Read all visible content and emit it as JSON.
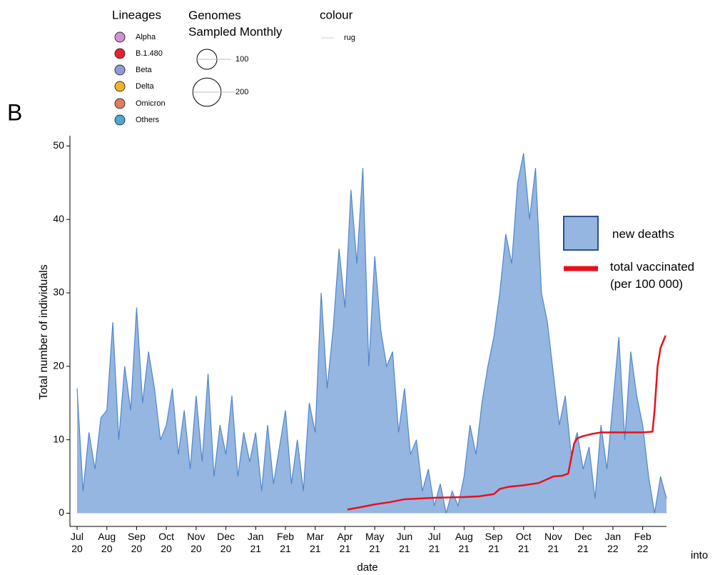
{
  "chart_data": {
    "type": "area",
    "panel": "B",
    "xlabel": "date",
    "ylabel": "Total number of individuals",
    "annotation": "into",
    "xlim": [
      -0.24,
      19.8
    ],
    "ylim": [
      -1.8,
      51.4
    ],
    "yticks": [
      0,
      10,
      20,
      30,
      40,
      50
    ],
    "xticks": [
      {
        "value": 0,
        "label": "Jul\n20"
      },
      {
        "value": 1,
        "label": "Aug\n20"
      },
      {
        "value": 2,
        "label": "Sep\n20"
      },
      {
        "value": 3,
        "label": "Oct\n20"
      },
      {
        "value": 4,
        "label": "Nov\n20"
      },
      {
        "value": 5,
        "label": "Dec\n20"
      },
      {
        "value": 6,
        "label": "Jan\n21"
      },
      {
        "value": 7,
        "label": "Feb\n21"
      },
      {
        "value": 8,
        "label": "Mar\n21"
      },
      {
        "value": 9,
        "label": "Apr\n21"
      },
      {
        "value": 10,
        "label": "May\n21"
      },
      {
        "value": 11,
        "label": "Jun\n21"
      },
      {
        "value": 12,
        "label": "Jul\n21"
      },
      {
        "value": 13,
        "label": "Aug\n21"
      },
      {
        "value": 14,
        "label": "Sep\n21"
      },
      {
        "value": 15,
        "label": "Oct\n21"
      },
      {
        "value": 16,
        "label": "Nov\n21"
      },
      {
        "value": 17,
        "label": "Dec\n21"
      },
      {
        "value": 18,
        "label": "Jan\n22"
      },
      {
        "value": 19,
        "label": "Feb\n22"
      }
    ],
    "series": [
      {
        "name": "new deaths",
        "type": "area",
        "color": "#95b6e0",
        "line_color": "#4f86cc",
        "edge_color": "#2d4f8a",
        "x": [
          0,
          0.2,
          0.4,
          0.6,
          0.8,
          1,
          1.2,
          1.4,
          1.6,
          1.8,
          2,
          2.2,
          2.4,
          2.6,
          2.8,
          3,
          3.2,
          3.4,
          3.6,
          3.8,
          4,
          4.2,
          4.4,
          4.6,
          4.8,
          5,
          5.2,
          5.4,
          5.6,
          5.8,
          6,
          6.2,
          6.4,
          6.6,
          6.8,
          7,
          7.2,
          7.4,
          7.6,
          7.8,
          8,
          8.2,
          8.4,
          8.6,
          8.8,
          9,
          9.2,
          9.4,
          9.6,
          9.8,
          10,
          10.2,
          10.4,
          10.6,
          10.8,
          11,
          11.2,
          11.4,
          11.6,
          11.8,
          12,
          12.2,
          12.4,
          12.6,
          12.8,
          13,
          13.2,
          13.4,
          13.6,
          13.8,
          14,
          14.2,
          14.4,
          14.6,
          14.8,
          15,
          15.2,
          15.4,
          15.6,
          15.8,
          16,
          16.2,
          16.4,
          16.6,
          16.8,
          17,
          17.2,
          17.4,
          17.6,
          17.8,
          18,
          18.2,
          18.4,
          18.6,
          18.8,
          19,
          19.2,
          19.4,
          19.6,
          19.8
        ],
        "values": [
          17,
          3,
          11,
          6,
          13,
          14,
          26,
          10,
          20,
          14,
          28,
          15,
          22,
          17,
          10,
          12,
          17,
          8,
          14,
          6,
          16,
          7,
          19,
          5,
          12,
          8,
          16,
          5,
          11,
          7,
          11,
          3,
          12,
          4,
          9,
          14,
          4,
          10,
          3,
          15,
          11,
          30,
          17,
          25,
          36,
          28,
          44,
          34,
          47,
          20,
          35,
          25,
          20,
          22,
          11,
          17,
          8,
          10,
          3,
          6,
          1,
          4,
          0,
          3,
          1,
          5,
          12,
          8,
          15,
          20,
          24,
          30,
          38,
          34,
          45,
          49,
          40,
          47,
          30,
          26,
          19,
          12,
          16,
          8,
          11,
          6,
          9,
          2,
          12,
          6,
          15,
          24,
          10,
          22,
          16,
          12,
          5,
          0,
          5,
          2
        ]
      },
      {
        "name": "total vaccinated\n(per 100 000)",
        "type": "line",
        "color": "#e8101a",
        "x": [
          9.08,
          9.5,
          10,
          10.5,
          11,
          12,
          13,
          13.5,
          14,
          14.2,
          14.5,
          15,
          15.5,
          16,
          16.3,
          16.5,
          16.6,
          16.7,
          16.8,
          17,
          17.3,
          17.6,
          18,
          18.5,
          19,
          19.33,
          19.4,
          19.5,
          19.6,
          19.7,
          19.77
        ],
        "values": [
          0.5,
          0.8,
          1.2,
          1.5,
          1.9,
          2.1,
          2.2,
          2.3,
          2.6,
          3.3,
          3.6,
          3.8,
          4.1,
          5,
          5.1,
          5.4,
          7.5,
          9.5,
          10.2,
          10.5,
          10.8,
          11,
          11,
          11,
          11,
          11.1,
          14,
          20,
          22.5,
          23.5,
          24.2
        ]
      }
    ],
    "lineages": {
      "title": "Lineages",
      "entries": [
        {
          "name": "Alpha",
          "color": "#d58fd8"
        },
        {
          "name": "B.1.480",
          "color": "#e8202a"
        },
        {
          "name": "Beta",
          "color": "#8f9ad6"
        },
        {
          "name": "Delta",
          "color": "#f0b323"
        },
        {
          "name": "Omicron",
          "color": "#e07b5c"
        },
        {
          "name": "Others",
          "color": "#4aa9d9"
        }
      ]
    },
    "genomes": {
      "title": "Genomes\nSampled Monthly",
      "sizes": [
        100,
        200
      ]
    },
    "colour": {
      "title": "colour",
      "entries": [
        "rug"
      ]
    }
  }
}
